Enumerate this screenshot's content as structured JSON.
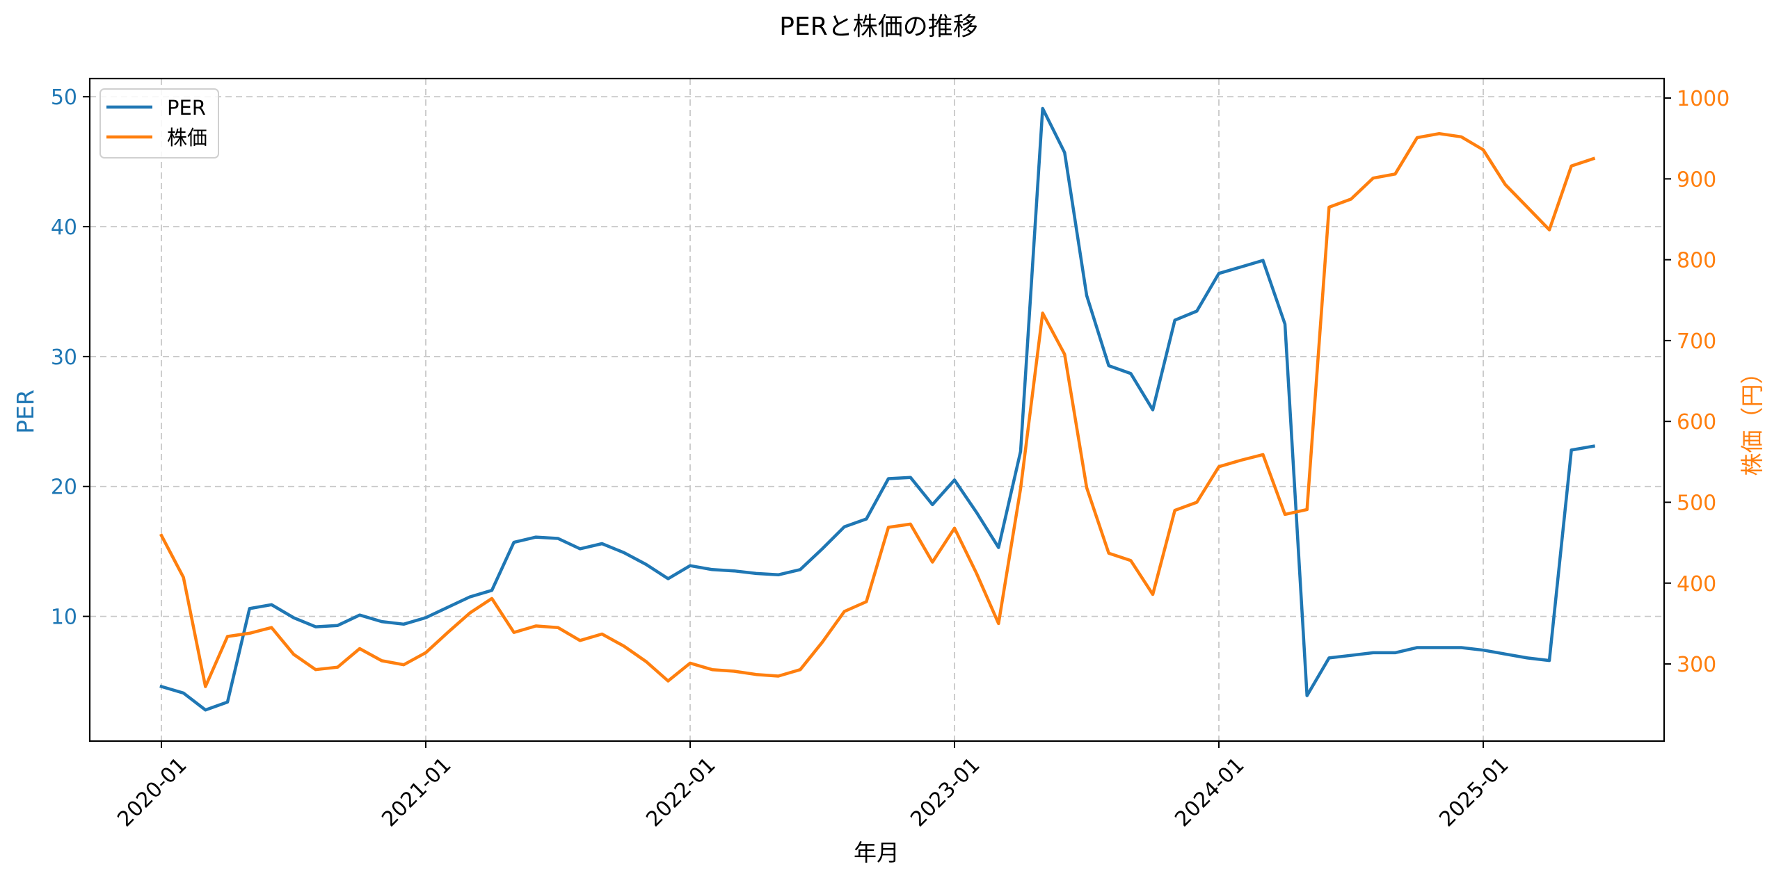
{
  "chart_data": {
    "type": "line",
    "title": "PERと株価の推移",
    "xlabel": "年月",
    "ylabel": "PER",
    "ylabel_right": "株価（円）",
    "x": [
      "2020-01",
      "2020-02",
      "2020-03",
      "2020-04",
      "2020-05",
      "2020-06",
      "2020-07",
      "2020-08",
      "2020-09",
      "2020-10",
      "2020-11",
      "2020-12",
      "2021-01",
      "2021-02",
      "2021-03",
      "2021-04",
      "2021-05",
      "2021-06",
      "2021-07",
      "2021-08",
      "2021-09",
      "2021-10",
      "2021-11",
      "2021-12",
      "2022-01",
      "2022-02",
      "2022-03",
      "2022-04",
      "2022-05",
      "2022-06",
      "2022-07",
      "2022-08",
      "2022-09",
      "2022-10",
      "2022-11",
      "2022-12",
      "2023-01",
      "2023-02",
      "2023-03",
      "2023-04",
      "2023-05",
      "2023-06",
      "2023-07",
      "2023-08",
      "2023-09",
      "2023-10",
      "2023-11",
      "2023-12",
      "2024-01",
      "2024-02",
      "2024-03",
      "2024-04",
      "2024-05",
      "2024-06",
      "2024-07",
      "2024-08",
      "2024-09",
      "2024-10",
      "2024-11",
      "2024-12",
      "2025-01",
      "2025-02",
      "2025-03",
      "2025-04",
      "2025-05",
      "2025-06"
    ],
    "x_ticks": [
      "2020-01",
      "2021-01",
      "2022-01",
      "2023-01",
      "2024-01",
      "2025-01"
    ],
    "series": [
      {
        "name": "PER",
        "axis": "left",
        "color": "#1f77b4",
        "values": [
          4.6,
          4.1,
          2.8,
          3.4,
          10.6,
          10.9,
          9.9,
          9.2,
          9.3,
          10.1,
          9.6,
          9.4,
          9.9,
          10.7,
          11.5,
          12.0,
          15.7,
          16.1,
          16.0,
          15.2,
          15.6,
          14.9,
          14.0,
          12.9,
          13.9,
          13.6,
          13.5,
          13.3,
          13.2,
          13.6,
          15.2,
          16.9,
          17.5,
          20.6,
          20.7,
          18.6,
          20.5,
          18.0,
          15.3,
          22.7,
          49.1,
          45.7,
          34.7,
          29.3,
          28.7,
          25.9,
          32.8,
          33.5,
          36.4,
          36.9,
          37.4,
          32.5,
          3.9,
          6.8,
          7.0,
          7.2,
          7.2,
          7.6,
          7.6,
          7.6,
          7.4,
          7.1,
          6.8,
          6.6,
          22.8,
          23.1
        ]
      },
      {
        "name": "株価",
        "axis": "right",
        "color": "#ff7f0e",
        "values": [
          459,
          407,
          272,
          334,
          338,
          345,
          312,
          293,
          296,
          319,
          304,
          299,
          314,
          339,
          363,
          381,
          339,
          347,
          345,
          329,
          337,
          322,
          303,
          279,
          301,
          293,
          291,
          287,
          285,
          293,
          327,
          365,
          377,
          469,
          473,
          426,
          468,
          412,
          350,
          517,
          734,
          683,
          518,
          437,
          428,
          386,
          490,
          500,
          544,
          552,
          559,
          485,
          491,
          865,
          875,
          901,
          906,
          951,
          956,
          952,
          936,
          893,
          865,
          837,
          916,
          925
        ]
      }
    ],
    "y_left": {
      "ticks": [
        10,
        20,
        30,
        40,
        50
      ],
      "ylim": [
        0.4,
        51.4
      ],
      "color": "#1f77b4"
    },
    "y_right": {
      "ticks": [
        300,
        400,
        500,
        600,
        700,
        800,
        900,
        1000
      ],
      "ylim": [
        204.6,
        1024.1
      ],
      "color": "#ff7f0e"
    },
    "grid": true,
    "legend": {
      "position": "upper left",
      "entries": [
        "PER",
        "株価"
      ]
    }
  }
}
